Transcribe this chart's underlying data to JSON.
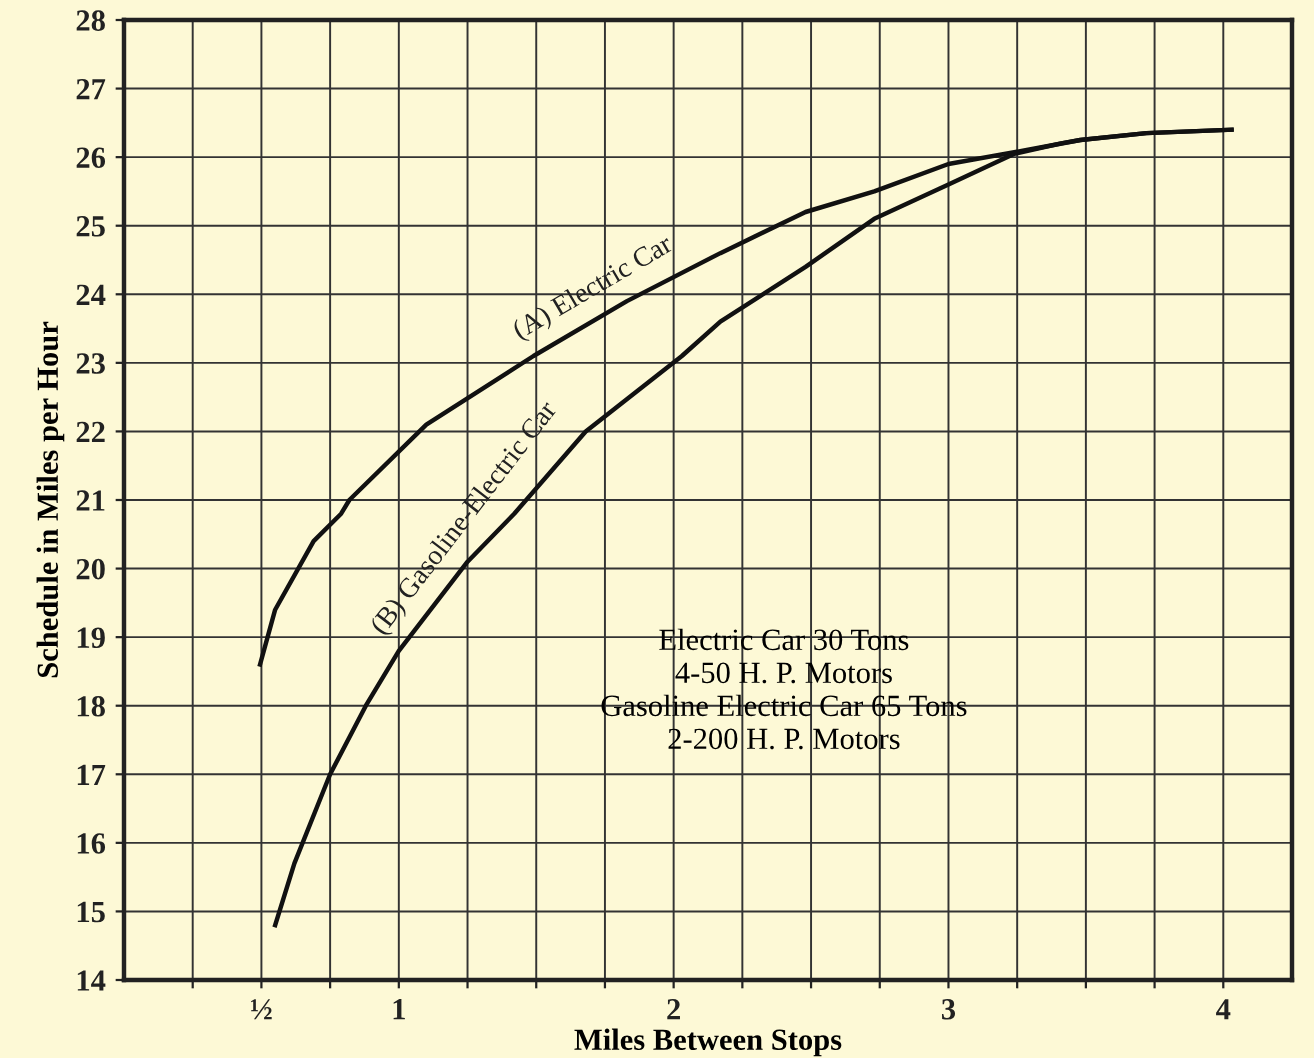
{
  "chart_data": {
    "type": "line",
    "xlabel": "Miles Between Stops",
    "ylabel": "Schedule in Miles per Hour",
    "series": [
      {
        "name": "(A) Electric Car",
        "color": "#111111",
        "x": [
          0.495,
          0.55,
          0.69,
          0.79,
          0.82,
          1.1,
          1.49,
          1.83,
          2.17,
          2.48,
          2.73,
          3.0,
          3.28,
          3.48,
          3.72,
          4.03
        ],
        "values": [
          18.6,
          19.4,
          20.4,
          20.8,
          21.0,
          22.1,
          23.1,
          23.9,
          24.6,
          25.2,
          25.5,
          25.9,
          26.1,
          26.25,
          26.35,
          26.4
        ]
      },
      {
        "name": "(B) Gasoline-Electric Car",
        "color": "#111111",
        "x": [
          0.55,
          0.62,
          0.75,
          0.88,
          1.0,
          1.25,
          1.42,
          1.68,
          2.03,
          2.17,
          2.48,
          2.73,
          3.0,
          3.24,
          3.41,
          3.48,
          3.72,
          4.03
        ],
        "values": [
          14.8,
          15.7,
          17.0,
          18.0,
          18.8,
          20.1,
          20.8,
          22.0,
          23.1,
          23.6,
          24.4,
          25.1,
          25.6,
          26.05,
          26.2,
          26.25,
          26.35,
          26.4
        ]
      }
    ],
    "annotations": [
      "Electric Car 30 Tons\n4-50 H. P. Motors\nGasoline Electric Car 65 Tons\n2-200 H. P. Motors"
    ],
    "xlim": [
      0,
      4.25
    ],
    "ylim": [
      14,
      28
    ],
    "xticks": [
      {
        "value": 0.25,
        "label": null
      },
      {
        "value": 0.5,
        "label": "½"
      },
      {
        "value": 0.75,
        "label": null
      },
      1,
      {
        "value": 1.25,
        "label": null
      },
      {
        "value": 1.5,
        "label": null
      },
      {
        "value": 1.75,
        "label": null
      },
      2,
      {
        "value": 2.25,
        "label": null
      },
      {
        "value": 2.5,
        "label": null
      },
      {
        "value": 2.75,
        "label": null
      },
      3,
      {
        "value": 3.25,
        "label": null
      },
      {
        "value": 3.5,
        "label": null
      },
      {
        "value": 3.75,
        "label": null
      },
      4
    ],
    "yticks": [
      14,
      15,
      16,
      17,
      18,
      19,
      20,
      21,
      22,
      23,
      24,
      25,
      26,
      27,
      28
    ],
    "grid": true,
    "marker": "none",
    "line_style": "solid",
    "legend": false
  }
}
